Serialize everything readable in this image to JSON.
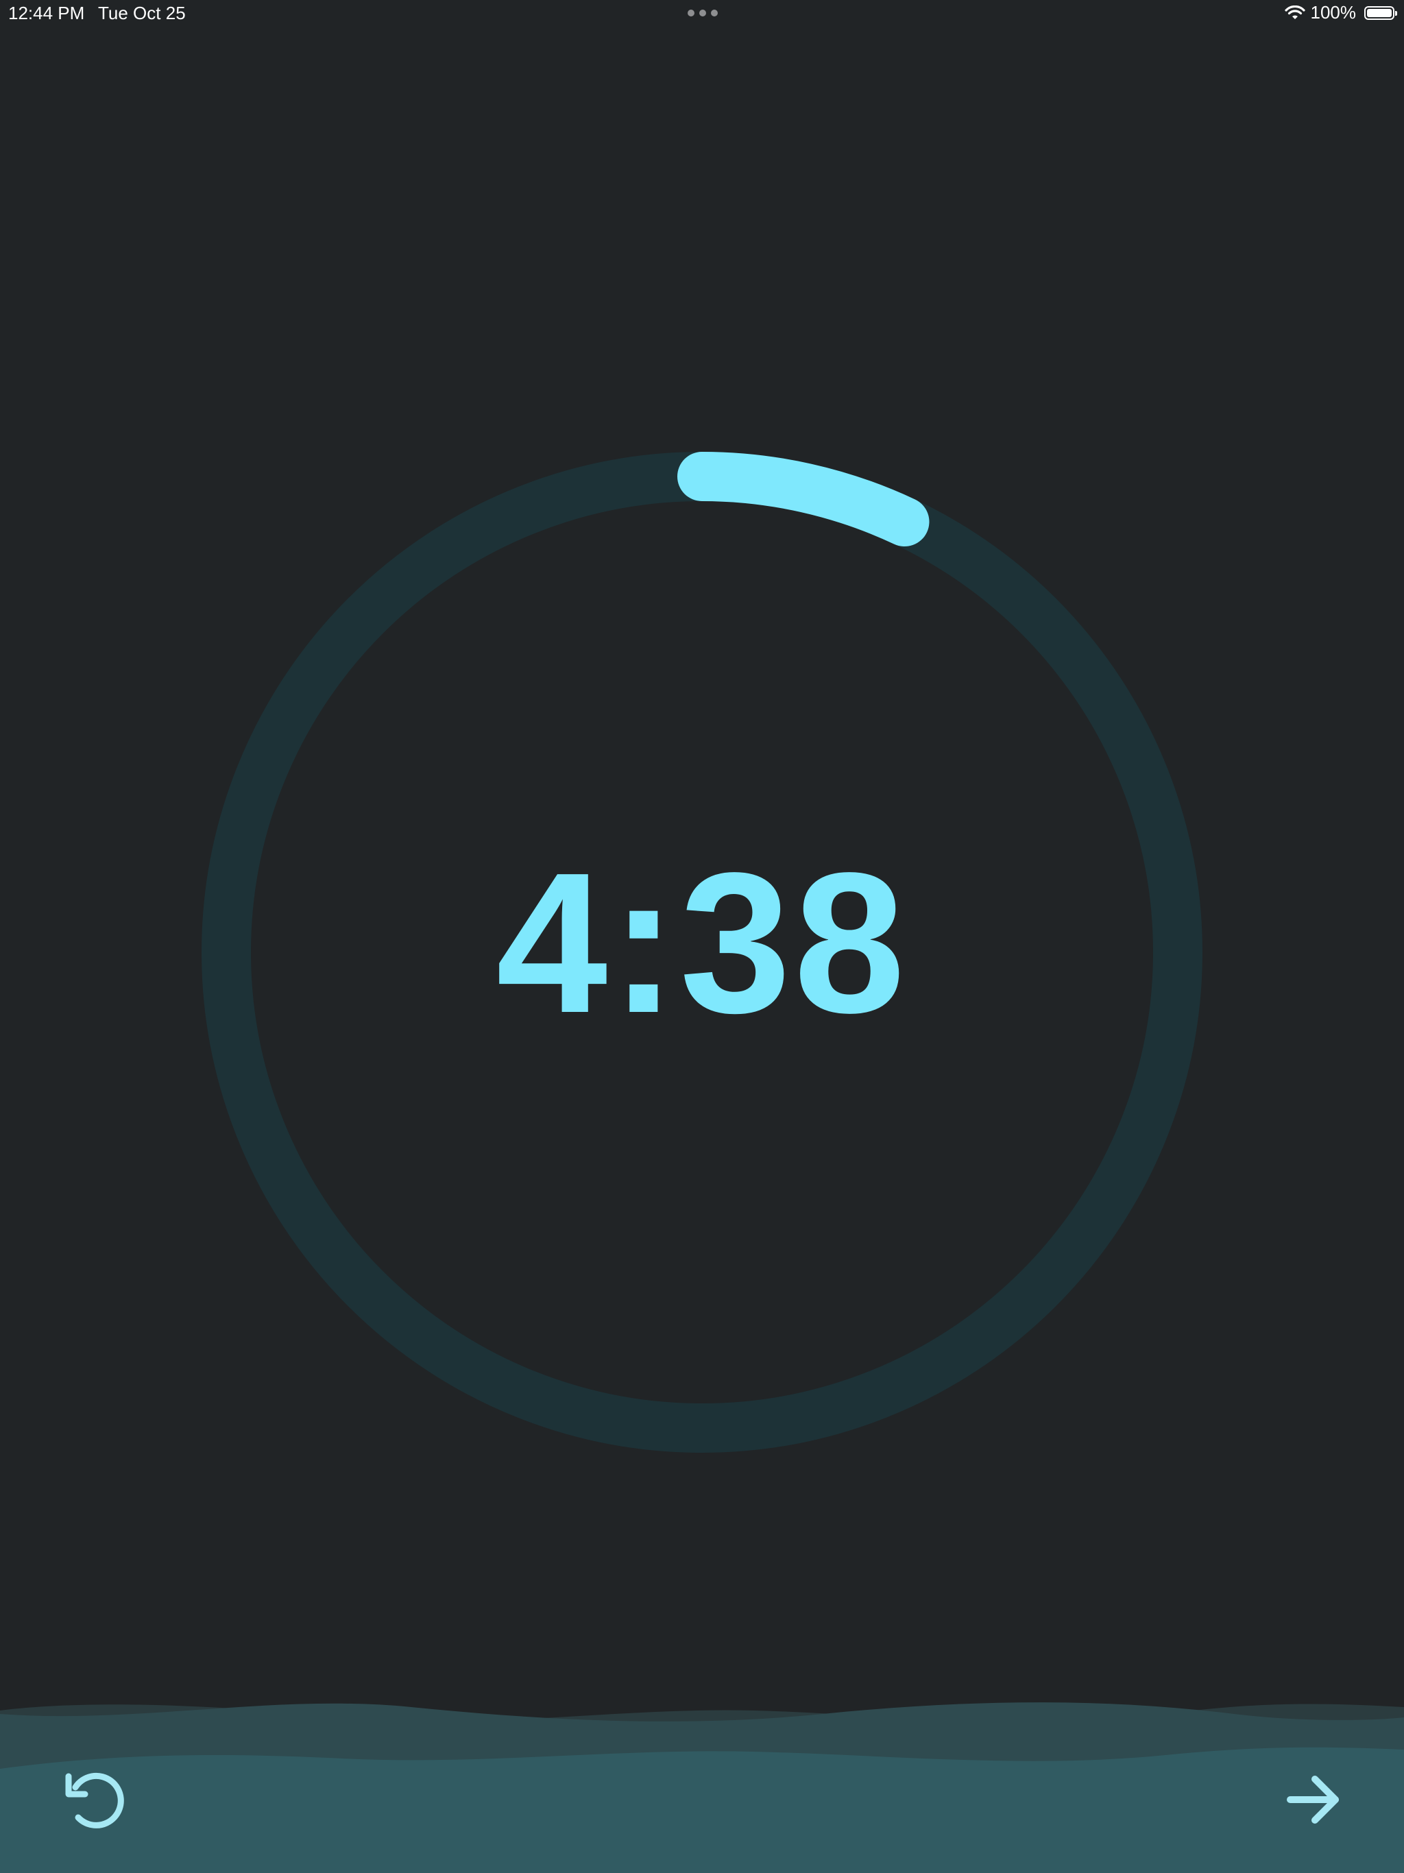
{
  "status_bar": {
    "time": "12:44 PM",
    "date": "Tue Oct 25",
    "battery_percent": "100%",
    "battery_level": 1.0
  },
  "timer": {
    "display": "4:38",
    "progress_fraction": 0.07
  },
  "controls": {
    "reset_icon": "reset-icon",
    "next_icon": "arrow-right-icon"
  },
  "colors": {
    "background": "#212426",
    "accent": "#7fe8fd",
    "ring_track": "#1d3237",
    "footer": "#315b62"
  }
}
